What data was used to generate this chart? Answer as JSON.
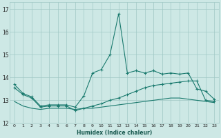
{
  "xlabel": "Humidex (Indice chaleur)",
  "xlim": [
    -0.5,
    23.5
  ],
  "ylim": [
    12.0,
    17.3
  ],
  "yticks": [
    12,
    13,
    14,
    15,
    16,
    17
  ],
  "xticks": [
    0,
    1,
    2,
    3,
    4,
    5,
    6,
    7,
    8,
    9,
    10,
    11,
    12,
    13,
    14,
    15,
    16,
    17,
    18,
    19,
    20,
    21,
    22,
    23
  ],
  "bg_color": "#cde8e5",
  "grid_color": "#a0c8c5",
  "line_color": "#1a7a6e",
  "series1_x": [
    0,
    1,
    2,
    3,
    4,
    5,
    6,
    7,
    8,
    9,
    10,
    11,
    12,
    13,
    14,
    15,
    16,
    17,
    18,
    19,
    20,
    21,
    22,
    23
  ],
  "series1_y": [
    13.7,
    13.3,
    13.15,
    12.75,
    12.8,
    12.8,
    12.8,
    12.7,
    13.2,
    14.2,
    14.35,
    15.0,
    16.8,
    14.2,
    14.3,
    14.2,
    14.3,
    14.15,
    14.2,
    14.15,
    14.2,
    13.5,
    13.4,
    13.05
  ],
  "series2_x": [
    0,
    1,
    2,
    3,
    4,
    5,
    6,
    7,
    8,
    9,
    10,
    11,
    12,
    13,
    14,
    15,
    16,
    17,
    18,
    19,
    20,
    21,
    22,
    23
  ],
  "series2_y": [
    13.55,
    13.25,
    13.1,
    12.7,
    12.75,
    12.75,
    12.75,
    12.55,
    12.65,
    12.75,
    12.85,
    13.0,
    13.1,
    13.25,
    13.4,
    13.55,
    13.65,
    13.7,
    13.75,
    13.8,
    13.85,
    13.85,
    13.0,
    12.95
  ],
  "series3_x": [
    0,
    1,
    2,
    3,
    4,
    5,
    6,
    7,
    8,
    9,
    10,
    11,
    12,
    13,
    14,
    15,
    16,
    17,
    18,
    19,
    20,
    21,
    22,
    23
  ],
  "series3_y": [
    12.95,
    12.75,
    12.65,
    12.6,
    12.65,
    12.65,
    12.65,
    12.6,
    12.65,
    12.65,
    12.7,
    12.75,
    12.8,
    12.85,
    12.9,
    12.95,
    13.0,
    13.05,
    13.1,
    13.1,
    13.05,
    13.0,
    12.95,
    12.9
  ]
}
